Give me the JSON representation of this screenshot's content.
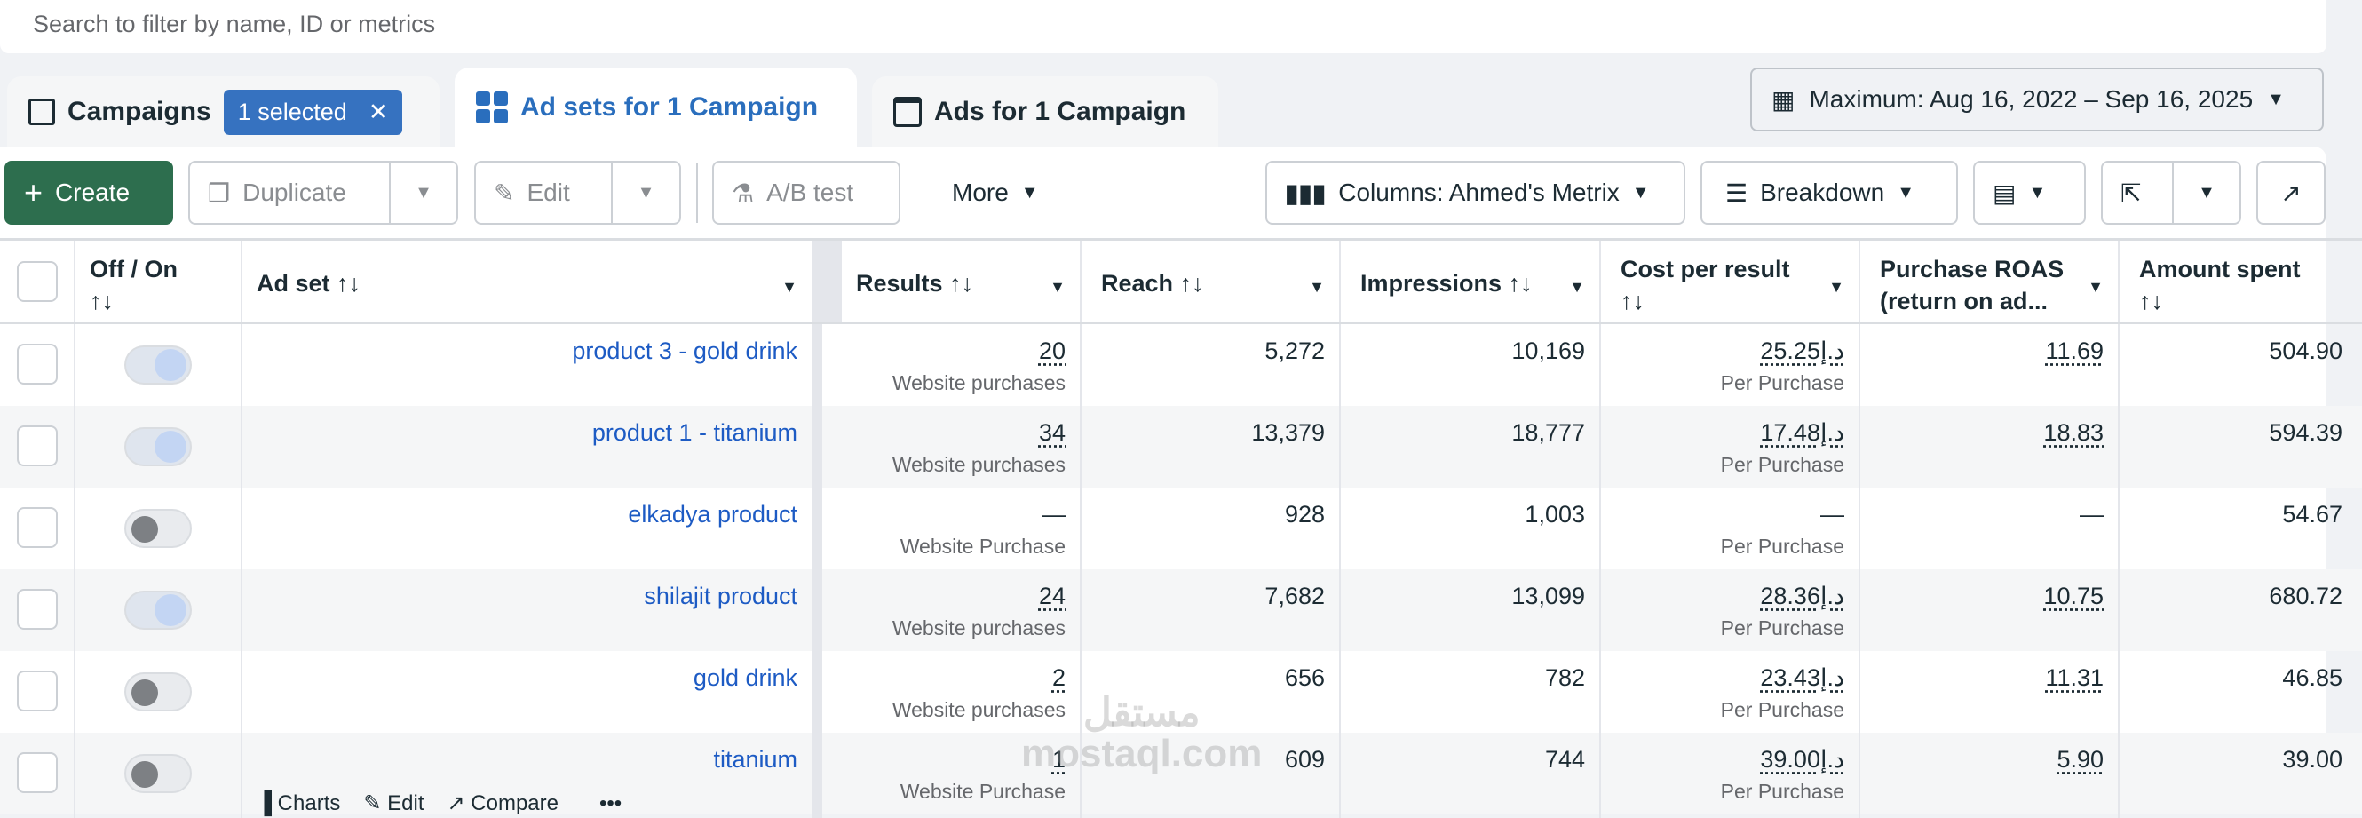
{
  "search": {
    "placeholder": "Search to filter by name, ID or metrics"
  },
  "tabs": {
    "campaigns": "Campaigns",
    "selected": "1 selected",
    "clear": "✕",
    "adsets": "Ad sets for 1 Campaign",
    "ads": "Ads for 1 Campaign"
  },
  "date_range": "Maximum: Aug 16, 2022 – Sep 16, 2025",
  "toolbar": {
    "create": "Create",
    "duplicate": "Duplicate",
    "edit": "Edit",
    "ab_test": "A/B test",
    "more": "More",
    "columns": "Columns: Ahmed's Metrix",
    "breakdown": "Breakdown"
  },
  "headers": {
    "onoff": "Off / On",
    "adset": "Ad set",
    "results": "Results",
    "reach": "Reach",
    "impressions": "Impressions",
    "cost": "Cost per result",
    "roas": "Purchase ROAS (return on ad...",
    "amount": "Amount spent",
    "sort": "↑↓"
  },
  "rows": [
    {
      "name": "product 3 - gold drink",
      "on": true,
      "results": "20",
      "results_type": "Website purchases",
      "reach": "5,272",
      "impressions": "10,169",
      "cost": "د.إ25.25",
      "cost_type": "Per Purchase",
      "roas": "11.69",
      "amount": "504.90"
    },
    {
      "name": "product 1 - titanium",
      "on": true,
      "results": "34",
      "results_type": "Website purchases",
      "reach": "13,379",
      "impressions": "18,777",
      "cost": "د.إ17.48",
      "cost_type": "Per Purchase",
      "roas": "18.83",
      "amount": "594.39"
    },
    {
      "name": "elkadya product",
      "on": false,
      "results": "—",
      "results_type": "Website Purchase",
      "reach": "928",
      "impressions": "1,003",
      "cost": "—",
      "cost_type": "Per Purchase",
      "roas": "—",
      "amount": "54.67"
    },
    {
      "name": "shilajit product",
      "on": true,
      "results": "24",
      "results_type": "Website purchases",
      "reach": "7,682",
      "impressions": "13,099",
      "cost": "د.إ28.36",
      "cost_type": "Per Purchase",
      "roas": "10.75",
      "amount": "680.72"
    },
    {
      "name": "gold drink",
      "on": false,
      "results": "2",
      "results_type": "Website purchases",
      "reach": "656",
      "impressions": "782",
      "cost": "د.إ23.43",
      "cost_type": "Per Purchase",
      "roas": "11.31",
      "amount": "46.85"
    },
    {
      "name": "titanium",
      "on": false,
      "results": "1",
      "results_type": "Website Purchase",
      "reach": "609",
      "impressions": "744",
      "cost": "د.إ39.00",
      "cost_type": "Per Purchase",
      "roas": "5.90",
      "amount": "39.00"
    }
  ],
  "row_actions": {
    "charts": "Charts",
    "edit": "Edit",
    "compare": "Compare",
    "more": "•••"
  },
  "watermark": {
    "arabic": "مستقل",
    "latin": "mostaql.com"
  }
}
